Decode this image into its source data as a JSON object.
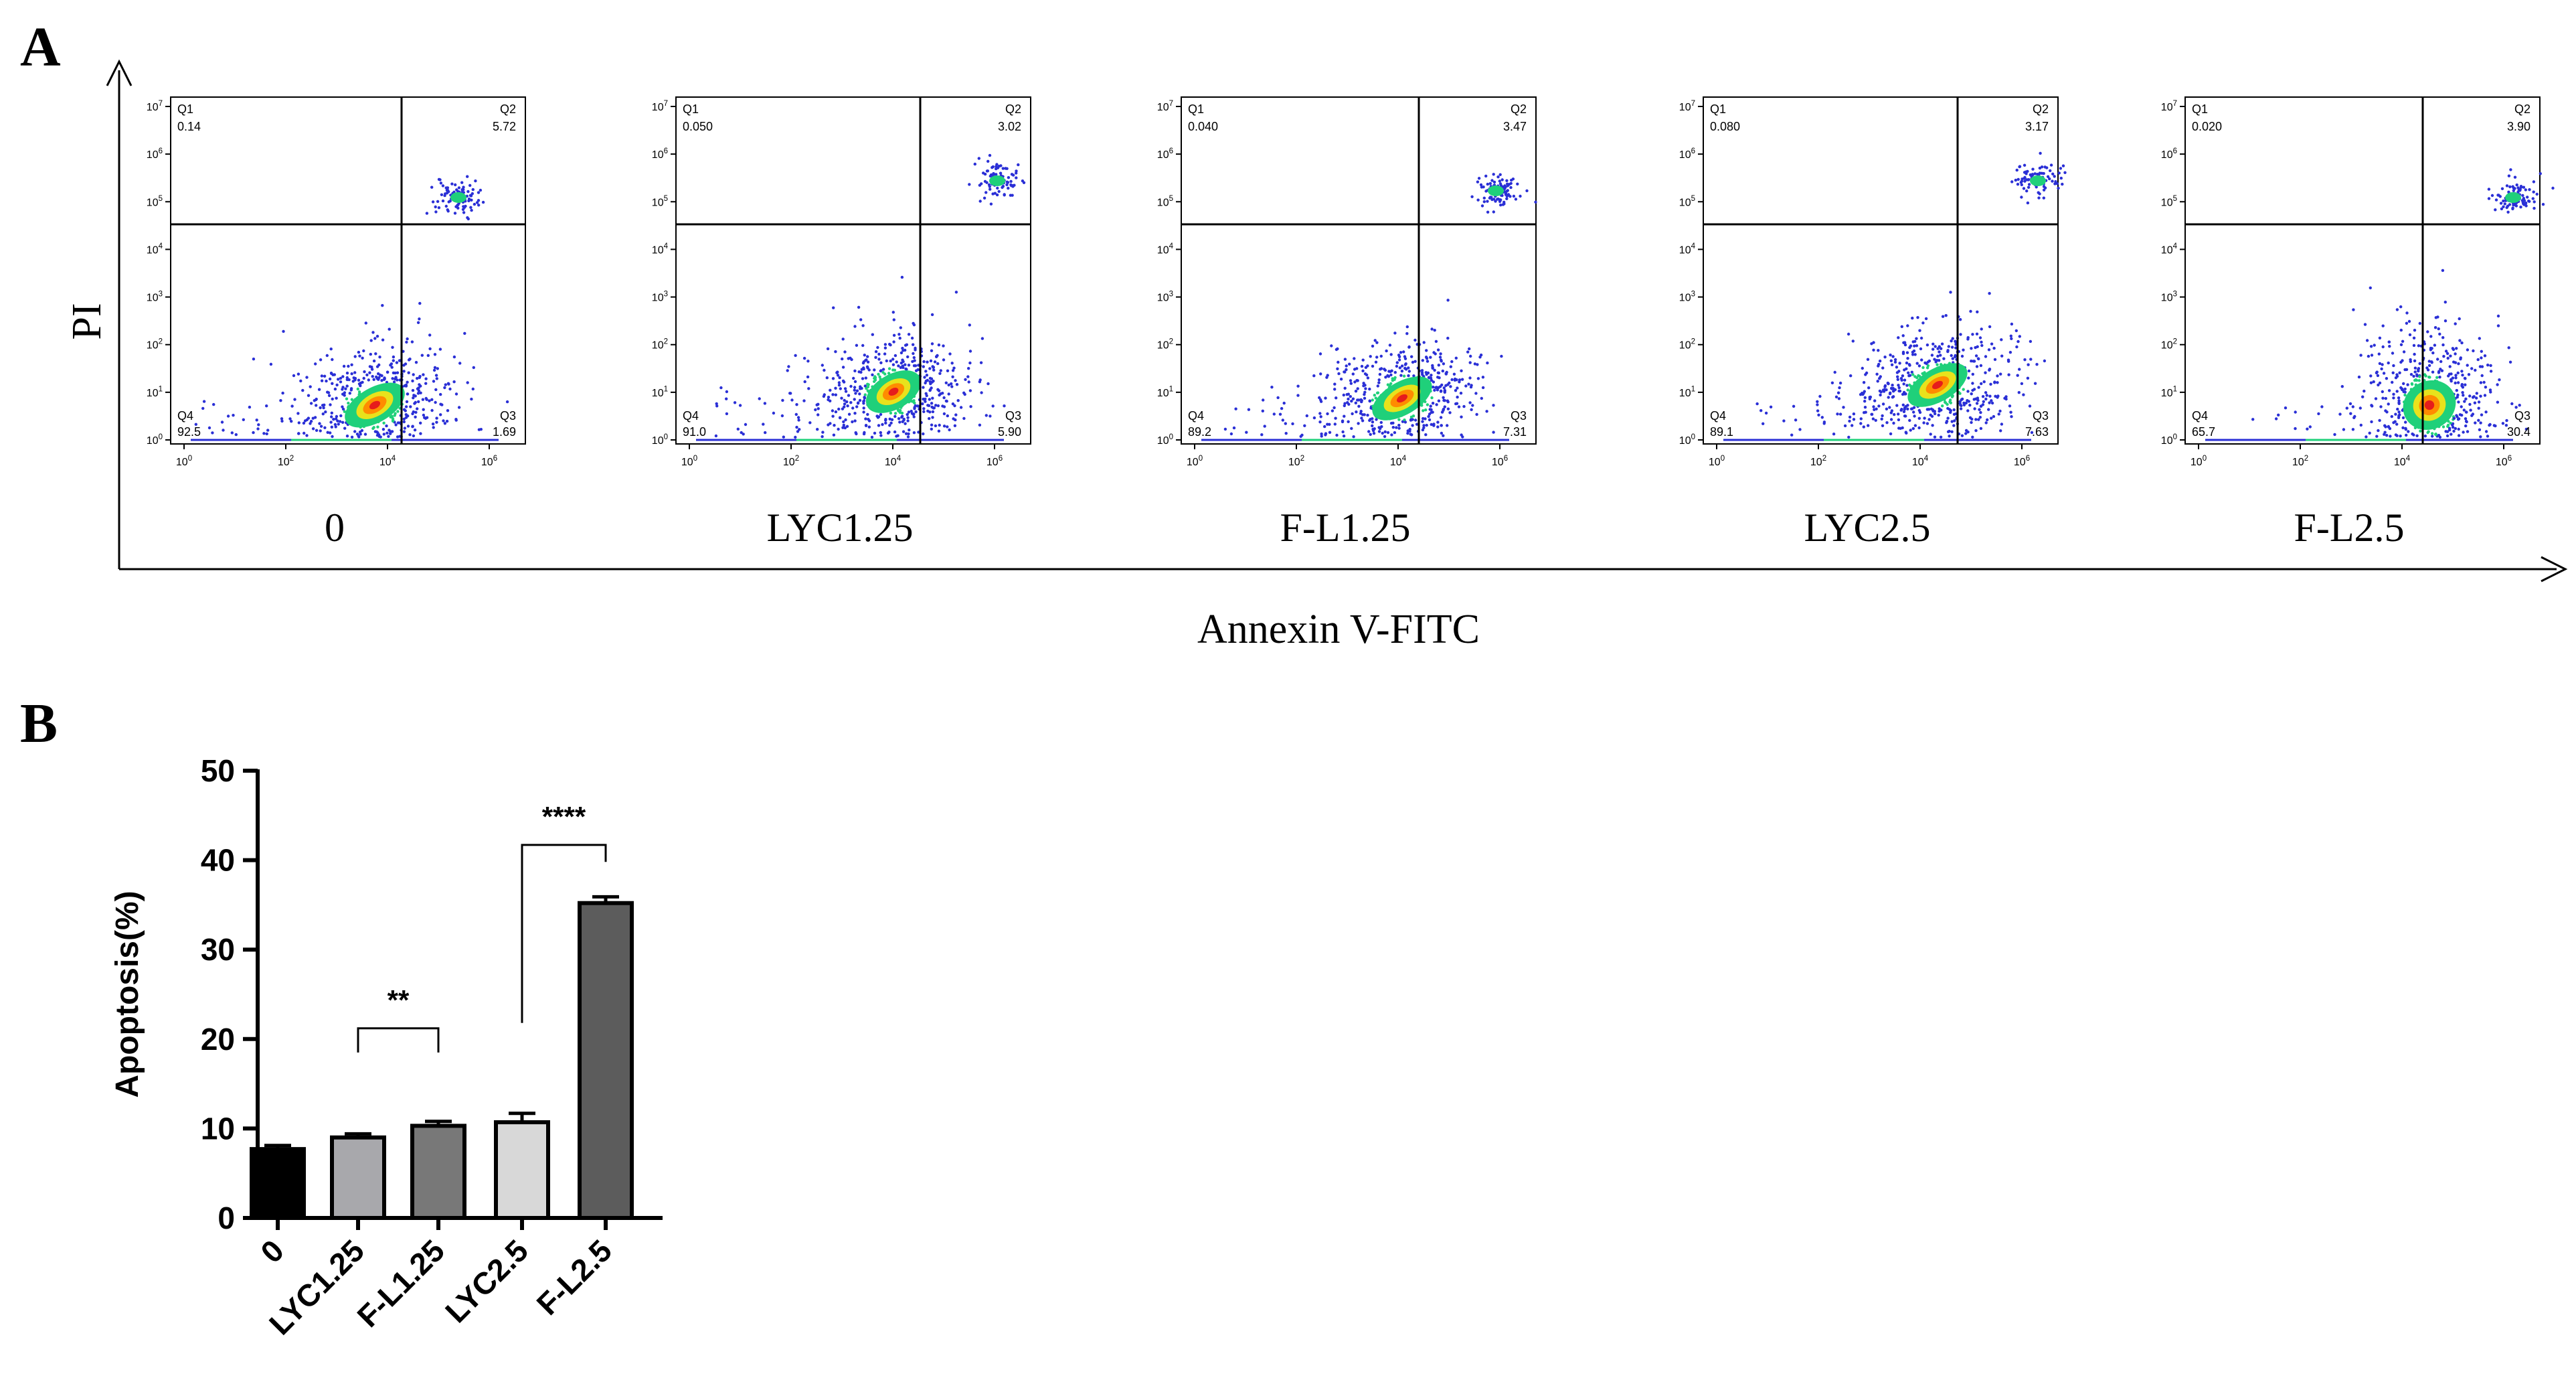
{
  "panel_labels": {
    "a": "A",
    "b": "B"
  },
  "panel_a": {
    "y_axis_label": "PI",
    "x_axis_label": "Annexin V-FITC",
    "y_ticks": [
      "10^0",
      "10^1",
      "10^2",
      "10^3",
      "10^4",
      "10^5",
      "10^6",
      "10^7"
    ],
    "x_ticks": [
      "10^0",
      "10^2",
      "10^4",
      "10^6"
    ],
    "quadrant_names": {
      "q1": "Q1",
      "q2": "Q2",
      "q3": "Q3",
      "q4": "Q4"
    },
    "colors": {
      "density_low": "#2a2fd6",
      "density_mid": "#1fd07a",
      "density_high_a": "#e8e21c",
      "density_high_b": "#ff8c00",
      "density_peak": "#e61c1c",
      "gate": "#000000"
    },
    "plots": [
      {
        "label": "0",
        "q1": "0.14",
        "q2": "5.72",
        "q3": "1.69",
        "q4": "92.5"
      },
      {
        "label": "LYC1.25",
        "q1": "0.050",
        "q2": "3.02",
        "q3": "5.90",
        "q4": "91.0"
      },
      {
        "label": "F-L1.25",
        "q1": "0.040",
        "q2": "3.47",
        "q3": "7.31",
        "q4": "89.2"
      },
      {
        "label": "LYC2.5",
        "q1": "0.080",
        "q2": "3.17",
        "q3": "7.63",
        "q4": "89.1"
      },
      {
        "label": "F-L2.5",
        "q1": "0.020",
        "q2": "3.90",
        "q3": "30.4",
        "q4": "65.7"
      }
    ]
  },
  "chart_data": {
    "type": "bar",
    "categories": [
      "0",
      "LYC1.25",
      "F-L1.25",
      "LYC2.5",
      "F-L2.5"
    ],
    "values": [
      7.7,
      9.0,
      10.3,
      10.7,
      35.2
    ],
    "errors": [
      0.4,
      0.4,
      0.5,
      1.0,
      0.7
    ],
    "colors": [
      "#000000",
      "#a8a8ac",
      "#787878",
      "#d8d8d8",
      "#5c5c5c"
    ],
    "ylabel": "Apoptosis(%)",
    "ylim": [
      0,
      50
    ],
    "yticks": [
      0,
      10,
      20,
      30,
      40,
      50
    ],
    "significance": [
      {
        "from": 1,
        "to": 2,
        "label": "**"
      },
      {
        "from": 3,
        "to": 4,
        "label": "****"
      }
    ]
  }
}
